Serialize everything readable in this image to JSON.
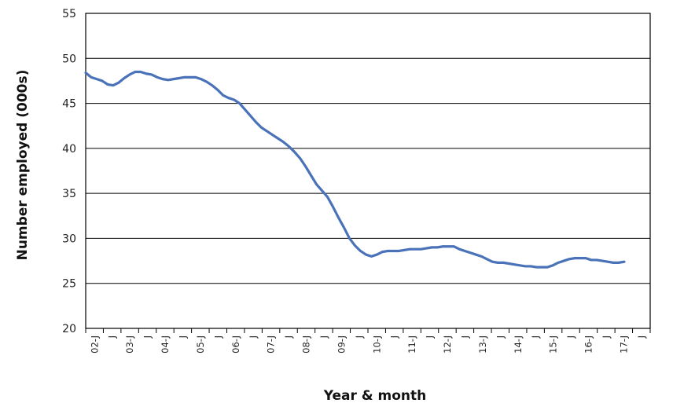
{
  "chart_data": {
    "type": "line",
    "xlabel": "Year & month",
    "ylabel": "Number employed (000s)",
    "ylim": [
      20,
      55
    ],
    "yticks": [
      "20",
      "25",
      "30",
      "35",
      "40",
      "45",
      "50",
      "55"
    ],
    "xticks": [
      "02-J",
      "J",
      "03-J",
      "J",
      "04-J",
      "J",
      "05-J",
      "J",
      "06-J",
      "J",
      "07-J",
      "J",
      "08-J",
      "J",
      "09-J",
      "J",
      "10-J",
      "J",
      "11-J",
      "J",
      "12-J",
      "J",
      "13-J",
      "J",
      "14-J",
      "J",
      "15-J",
      "J",
      "16-J",
      "J",
      "17-J",
      "J"
    ],
    "grid": true,
    "line_color": "#4a72b8",
    "series": [
      {
        "values": [
          48.4,
          47.9,
          47.7,
          47.5,
          47.1,
          47.0,
          47.3,
          47.8,
          48.2,
          48.5,
          48.5,
          48.3,
          48.2,
          47.9,
          47.7,
          47.6,
          47.7,
          47.8,
          47.9,
          47.9,
          47.9,
          47.7,
          47.4,
          47.0,
          46.5,
          45.9,
          45.6,
          45.4,
          45.0,
          44.3,
          43.6,
          42.9,
          42.3,
          41.9,
          41.5,
          41.1,
          40.7,
          40.2,
          39.6,
          38.9,
          38.0,
          37.0,
          36.0,
          35.3,
          34.6,
          33.5,
          32.3,
          31.2,
          30.0,
          29.2,
          28.6,
          28.2,
          28.0,
          28.2,
          28.5,
          28.6,
          28.6,
          28.6,
          28.7,
          28.8,
          28.8,
          28.8,
          28.9,
          29.0,
          29.0,
          29.1,
          29.1,
          29.1,
          28.8,
          28.6,
          28.4,
          28.2,
          28.0,
          27.7,
          27.4,
          27.3,
          27.3,
          27.2,
          27.1,
          27.0,
          26.9,
          26.9,
          26.8,
          26.8,
          26.8,
          27.0,
          27.3,
          27.5,
          27.7,
          27.8,
          27.8,
          27.8,
          27.6,
          27.6,
          27.5,
          27.4,
          27.3,
          27.3,
          27.4
        ]
      }
    ]
  }
}
